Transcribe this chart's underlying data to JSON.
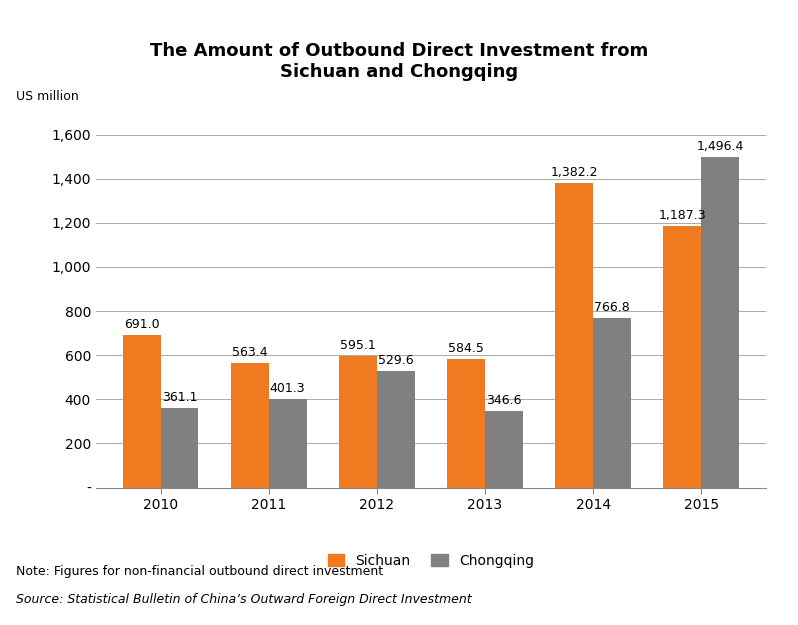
{
  "title": "The Amount of Outbound Direct Investment from\nSichuan and Chongqing",
  "ylabel": "US million",
  "years": [
    "2010",
    "2011",
    "2012",
    "2013",
    "2014",
    "2015"
  ],
  "sichuan": [
    691.0,
    563.4,
    595.1,
    584.5,
    1382.2,
    1187.3
  ],
  "chongqing": [
    361.1,
    401.3,
    529.6,
    346.6,
    766.8,
    1496.4
  ],
  "sichuan_color": "#F07A20",
  "chongqing_color": "#808080",
  "bar_width": 0.35,
  "ylim": [
    0,
    1700
  ],
  "yticks": [
    0,
    200,
    400,
    600,
    800,
    1000,
    1200,
    1400,
    1600
  ],
  "ytick_labels": [
    "-",
    "200",
    "400",
    "600",
    "800",
    "1,000",
    "1,200",
    "1,400",
    "1,600"
  ],
  "note_line1": "Note: Figures for non-financial outbound direct investment",
  "note_line2": "Source: Statistical Bulletin of China’s Outward Foreign Direct Investment",
  "legend_sichuan": "Sichuan",
  "legend_chongqing": "Chongqing",
  "title_fontsize": 13,
  "label_fontsize": 9,
  "tick_fontsize": 10,
  "note_fontsize": 9,
  "annotation_fontsize": 9
}
